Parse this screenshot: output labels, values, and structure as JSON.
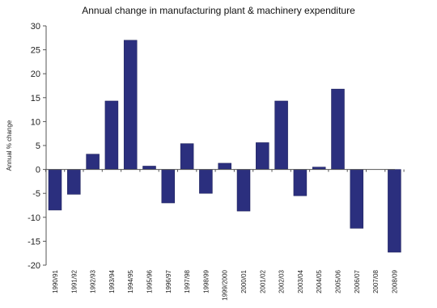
{
  "chart_data": {
    "type": "bar",
    "title": "Annual change in manufacturing plant & machinery expenditure",
    "xlabel": "",
    "ylabel": "Annual % change",
    "ylim": [
      -20,
      30
    ],
    "yticks": [
      30,
      25,
      20,
      15,
      10,
      5,
      0,
      -5,
      -10,
      -15,
      -20
    ],
    "grid": false,
    "legend": "none",
    "categories": [
      "1990/91",
      "1991/92",
      "1992/93",
      "1993/94",
      "1994/95",
      "1995/96",
      "1996/97",
      "1997/98",
      "1998/99",
      "1999/2000",
      "2000/01",
      "2001/02",
      "2002/03",
      "2003/04",
      "2004/05",
      "2005/06",
      "2006/07",
      "2007/08",
      "2008/09"
    ],
    "values": [
      -8.5,
      -5.2,
      3.2,
      14.3,
      27.0,
      0.7,
      -7.0,
      5.4,
      -5.0,
      1.3,
      -8.7,
      5.6,
      14.3,
      -5.5,
      0.5,
      16.8,
      -12.3,
      null,
      -17.3
    ],
    "bar_color": "#2b2f7e"
  }
}
